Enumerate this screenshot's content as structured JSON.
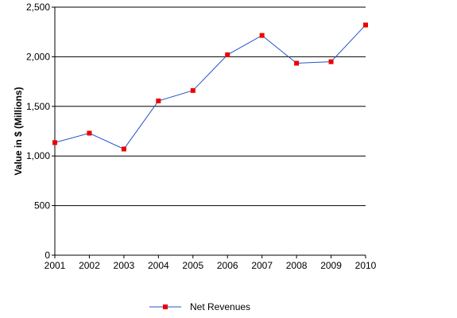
{
  "chart_data": {
    "type": "line",
    "title": "",
    "xlabel": "",
    "ylabel": "Value in $ (Millions)",
    "x": [
      2001,
      2002,
      2003,
      2004,
      2005,
      2006,
      2007,
      2008,
      2009,
      2010
    ],
    "x_tick_labels": [
      "2001",
      "2002",
      "2003",
      "2004",
      "2005",
      "2006",
      "2007",
      "2008",
      "2009",
      "2010"
    ],
    "ylim": [
      0,
      2500
    ],
    "y_ticks": [
      0,
      500,
      1000,
      1500,
      2000,
      2500
    ],
    "y_tick_labels": [
      "0",
      "500",
      "1,000",
      "1,500",
      "2,000",
      "2,500"
    ],
    "grid": "horizontal",
    "legend": {
      "placement": "bottom-center"
    },
    "series": [
      {
        "name": "Net Revenues",
        "line_color": "#2255cc",
        "marker_color": "#ee0000",
        "marker": "square",
        "values": [
          1135,
          1230,
          1070,
          1555,
          1660,
          2020,
          2215,
          1935,
          1950,
          2320
        ]
      }
    ]
  }
}
